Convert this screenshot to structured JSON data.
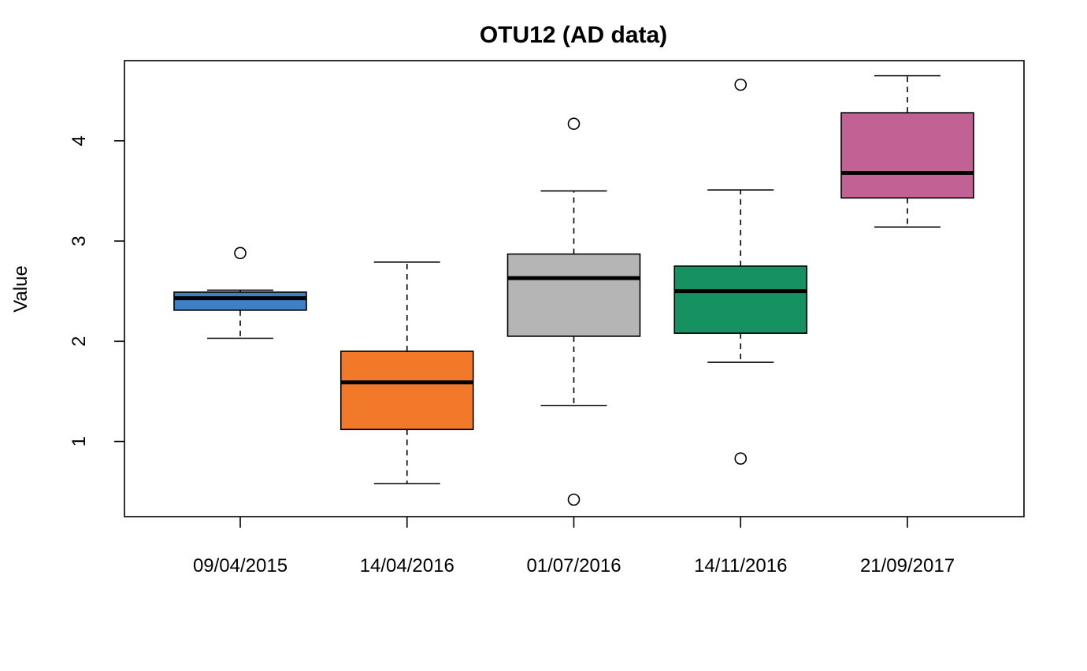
{
  "chart_data": {
    "type": "box",
    "title": "OTU12 (AD data)",
    "xlabel": "",
    "ylabel": "Value",
    "ylim": [
      0.25,
      4.8
    ],
    "y_ticks": [
      1,
      2,
      3,
      4
    ],
    "y_tick_labels": [
      "1",
      "2",
      "3",
      "4"
    ],
    "grid": false,
    "legend": "none",
    "categories": [
      "09/04/2015",
      "14/04/2016",
      "01/07/2016",
      "14/11/2016",
      "21/09/2017"
    ],
    "boxes": [
      {
        "category": "09/04/2015",
        "color": "#3F7FC6",
        "whisker_low": 2.03,
        "q1": 2.31,
        "median": 2.43,
        "q3": 2.49,
        "whisker_high": 2.51,
        "outliers": [
          2.88
        ]
      },
      {
        "category": "14/04/2016",
        "color": "#F27929",
        "whisker_low": 0.58,
        "q1": 1.12,
        "median": 1.59,
        "q3": 1.9,
        "whisker_high": 2.79,
        "outliers": []
      },
      {
        "category": "01/07/2016",
        "color": "#B5B5B5",
        "whisker_low": 1.36,
        "q1": 2.05,
        "median": 2.63,
        "q3": 2.87,
        "whisker_high": 3.5,
        "outliers": [
          4.17,
          0.42
        ]
      },
      {
        "category": "14/11/2016",
        "color": "#169262",
        "whisker_low": 1.79,
        "q1": 2.08,
        "median": 2.5,
        "q3": 2.75,
        "whisker_high": 3.51,
        "outliers": [
          4.56,
          0.83
        ]
      },
      {
        "category": "21/09/2017",
        "color": "#C26294",
        "whisker_low": 3.14,
        "q1": 3.43,
        "median": 3.68,
        "q3": 4.28,
        "whisker_high": 4.65,
        "outliers": []
      }
    ]
  }
}
